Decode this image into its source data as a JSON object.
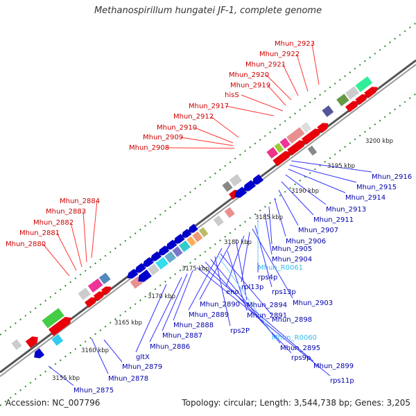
{
  "title": "Methanospirillum hungatei JF-1, complete genome",
  "footer": {
    "accession": "Accession: NC_007796",
    "topology": "Topology: circular; Length: 3,544,738 bp; Genes: 3,205"
  },
  "colors": {
    "forward": "#e8000b",
    "reverse": "#0000cc",
    "rna": "#33bbee",
    "backbone": "#888888"
  },
  "ticks": [
    "3155 kbp",
    "3160 kbp",
    "3165 kbp",
    "3170 kbp",
    "3175 kbp",
    "3180 kbp",
    "3185 kbp",
    "3190 kbp",
    "3195 kbp",
    "3200 kbp"
  ],
  "labels_red": [
    "Mhun_2880",
    "Mhun_2881",
    "Mhun_2882",
    "Mhun_2883",
    "Mhun_2884",
    "Mhun_2908",
    "Mhun_2909",
    "Mhun_2910",
    "Mhun_2912",
    "Mhun_2917",
    "hisS",
    "Mhun_2919",
    "Mhun_2920",
    "Mhun_2921",
    "Mhun_2922",
    "Mhun_2923"
  ],
  "labels_blue": [
    "Mhun_2916",
    "Mhun_2915",
    "Mhun_2914",
    "Mhun_2913",
    "Mhun_2911",
    "Mhun_2907",
    "Mhun_2906",
    "Mhun_2905",
    "Mhun_2904",
    "rps4p",
    "rps13p",
    "Mhun_2903",
    "rpl13p",
    "eno",
    "Mhun_2894",
    "Mhun_2890",
    "Mhun_2889",
    "Mhun_2891",
    "Mhun_2898",
    "rps2P",
    "Mhun_2895",
    "rps9p",
    "Mhun_2899",
    "rps11p",
    "Mhun_2888",
    "Mhun_2887",
    "Mhun_2886",
    "gltX",
    "Mhun_2879",
    "Mhun_2878",
    "Mhun_2875"
  ],
  "labels_cyan": [
    "Mhun_R0061",
    "Mhun_R0060"
  ]
}
